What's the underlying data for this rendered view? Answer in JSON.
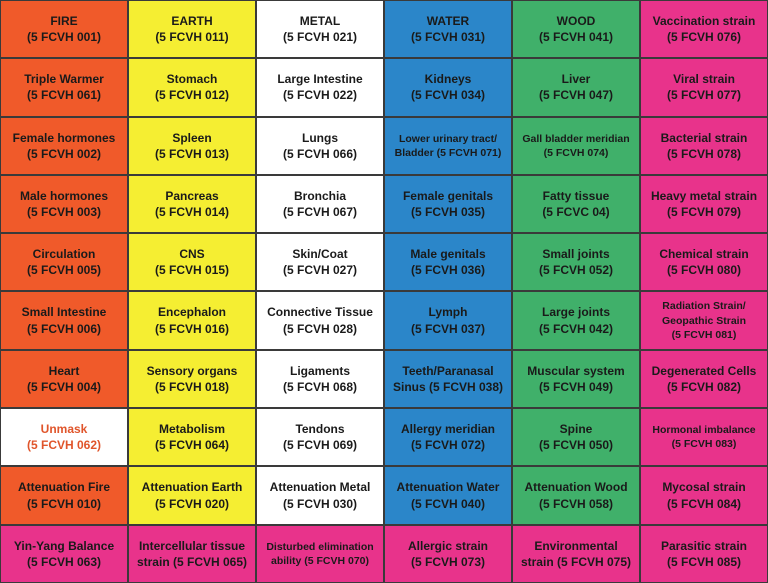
{
  "colors": {
    "fire": "#F05A2A",
    "earth": "#F5EE32",
    "metal": "#FFFFFF",
    "water": "#2B86C9",
    "wood": "#40B06A",
    "strain": "#E8338B",
    "unmask_text": "#E0552B"
  },
  "rows": [
    [
      {
        "l1": "FIRE",
        "l2": "(5 FCVH 001)",
        "color": "#F05A2A"
      },
      {
        "l1": "EARTH",
        "l2": "(5 FCVH 011)",
        "color": "#F5EE32"
      },
      {
        "l1": "METAL",
        "l2": "(5 FCVH 021)",
        "color": "#FFFFFF"
      },
      {
        "l1": "WATER",
        "l2": "(5 FCVH 031)",
        "color": "#2B86C9"
      },
      {
        "l1": "WOOD",
        "l2": "(5 FCVH 041)",
        "color": "#40B06A"
      },
      {
        "l1": "Vaccination strain",
        "l2": "(5 FCVH 076)",
        "color": "#E8338B"
      }
    ],
    [
      {
        "l1": "Triple Warmer",
        "l2": "(5 FCVH 061)",
        "color": "#F05A2A"
      },
      {
        "l1": "Stomach",
        "l2": "(5 FCVH 012)",
        "color": "#F5EE32"
      },
      {
        "l1": "Large Intestine",
        "l2": "(5 FCVH 022)",
        "color": "#FFFFFF"
      },
      {
        "l1": "Kidneys",
        "l2": "(5 FCVH 034)",
        "color": "#2B86C9"
      },
      {
        "l1": "Liver",
        "l2": "(5 FCVH 047)",
        "color": "#40B06A"
      },
      {
        "l1": "Viral strain",
        "l2": "(5 FCVH 077)",
        "color": "#E8338B"
      }
    ],
    [
      {
        "l1": "Female hormones",
        "l2": "(5 FCVH 002)",
        "color": "#F05A2A"
      },
      {
        "l1": "Spleen",
        "l2": "(5 FCVH 013)",
        "color": "#F5EE32"
      },
      {
        "l1": "Lungs",
        "l2": "(5 FCVH 066)",
        "color": "#FFFFFF"
      },
      {
        "l1": "Lower urinary tract/",
        "l2": "Bladder (5 FCVH 071)",
        "color": "#2B86C9",
        "small": true
      },
      {
        "l1": "Gall bladder meridian",
        "l2": "(5 FCVH 074)",
        "color": "#40B06A",
        "small": true
      },
      {
        "l1": "Bacterial strain",
        "l2": "(5 FCVH 078)",
        "color": "#E8338B"
      }
    ],
    [
      {
        "l1": "Male hormones",
        "l2": "(5 FCVH 003)",
        "color": "#F05A2A"
      },
      {
        "l1": "Pancreas",
        "l2": "(5 FCVH 014)",
        "color": "#F5EE32"
      },
      {
        "l1": "Bronchia",
        "l2": "(5 FCVH 067)",
        "color": "#FFFFFF"
      },
      {
        "l1": "Female genitals",
        "l2": "(5 FCVH 035)",
        "color": "#2B86C9"
      },
      {
        "l1": "Fatty tissue",
        "l2": "(5 FCVC 04)",
        "color": "#40B06A"
      },
      {
        "l1": "Heavy metal strain",
        "l2": "(5 FCVH 079)",
        "color": "#E8338B"
      }
    ],
    [
      {
        "l1": "Circulation",
        "l2": "(5 FCVH 005)",
        "color": "#F05A2A"
      },
      {
        "l1": "CNS",
        "l2": "(5 FCVH 015)",
        "color": "#F5EE32"
      },
      {
        "l1": "Skin/Coat",
        "l2": "(5 FCVH 027)",
        "color": "#FFFFFF"
      },
      {
        "l1": "Male genitals",
        "l2": "(5 FCVH 036)",
        "color": "#2B86C9"
      },
      {
        "l1": "Small joints",
        "l2": "(5 FCVH 052)",
        "color": "#40B06A"
      },
      {
        "l1": "Chemical strain",
        "l2": "(5 FCVH 080)",
        "color": "#E8338B"
      }
    ],
    [
      {
        "l1": "Small Intestine",
        "l2": "(5 FCVH 006)",
        "color": "#F05A2A"
      },
      {
        "l1": "Encephalon",
        "l2": "(5 FCVH 016)",
        "color": "#F5EE32"
      },
      {
        "l1": "Connective Tissue",
        "l2": "(5 FCVH 028)",
        "color": "#FFFFFF"
      },
      {
        "l1": "Lymph",
        "l2": "(5 FCVH 037)",
        "color": "#2B86C9"
      },
      {
        "l1": "Large joints",
        "l2": "(5 FCVH 042)",
        "color": "#40B06A"
      },
      {
        "l1": "Radiation Strain/",
        "l2": "Geopathic Strain",
        "l3": "(5 FCVH 081)",
        "color": "#E8338B",
        "small": true
      }
    ],
    [
      {
        "l1": "Heart",
        "l2": "(5 FCVH 004)",
        "color": "#F05A2A"
      },
      {
        "l1": "Sensory organs",
        "l2": "(5 FCVH 018)",
        "color": "#F5EE32"
      },
      {
        "l1": "Ligaments",
        "l2": "(5 FCVH 068)",
        "color": "#FFFFFF"
      },
      {
        "l1": "Teeth/Paranasal",
        "l2": "Sinus (5 FCVH 038)",
        "color": "#2B86C9"
      },
      {
        "l1": "Muscular system",
        "l2": "(5 FCVH 049)",
        "color": "#40B06A"
      },
      {
        "l1": "Degenerated Cells",
        "l2": "(5 FCVH 082)",
        "color": "#E8338B"
      }
    ],
    [
      {
        "l1": "Unmask",
        "l2": "(5 FCVH 062)",
        "color": "#FFFFFF",
        "text_color": "#E0552B"
      },
      {
        "l1": "Metabolism",
        "l2": "(5 FCVH 064)",
        "color": "#F5EE32"
      },
      {
        "l1": "Tendons",
        "l2": "(5 FCVH 069)",
        "color": "#FFFFFF"
      },
      {
        "l1": "Allergy meridian",
        "l2": "(5 FCVH 072)",
        "color": "#2B86C9"
      },
      {
        "l1": "Spine",
        "l2": "(5 FCVH 050)",
        "color": "#40B06A"
      },
      {
        "l1": "Hormonal imbalance",
        "l2": "(5 FCVH 083)",
        "color": "#E8338B",
        "small": true
      }
    ],
    [
      {
        "l1": "Attenuation Fire",
        "l2": "(5 FCVH 010)",
        "color": "#F05A2A"
      },
      {
        "l1": "Attenuation Earth",
        "l2": "(5 FCVH 020)",
        "color": "#F5EE32"
      },
      {
        "l1": "Attenuation Metal",
        "l2": "(5 FCVH 030)",
        "color": "#FFFFFF"
      },
      {
        "l1": "Attenuation Water",
        "l2": "(5 FCVH 040)",
        "color": "#2B86C9"
      },
      {
        "l1": "Attenuation Wood",
        "l2": "(5 FCVH 058)",
        "color": "#40B06A"
      },
      {
        "l1": "Mycosal strain",
        "l2": "(5 FCVH 084)",
        "color": "#E8338B"
      }
    ],
    [
      {
        "l1": "Yin-Yang Balance",
        "l2": "(5 FCVH 063)",
        "color": "#E8338B"
      },
      {
        "l1": "Intercellular tissue",
        "l2": "strain (5 FCVH 065)",
        "color": "#E8338B"
      },
      {
        "l1": "Disturbed elimination",
        "l2": "ability (5 FCVH 070)",
        "color": "#E8338B",
        "small": true
      },
      {
        "l1": "Allergic strain",
        "l2": "(5 FCVH 073)",
        "color": "#E8338B"
      },
      {
        "l1": "Environmental",
        "l2": "strain (5 FCVH 075)",
        "color": "#E8338B"
      },
      {
        "l1": "Parasitic strain",
        "l2": "(5 FCVH 085)",
        "color": "#E8338B"
      }
    ]
  ]
}
